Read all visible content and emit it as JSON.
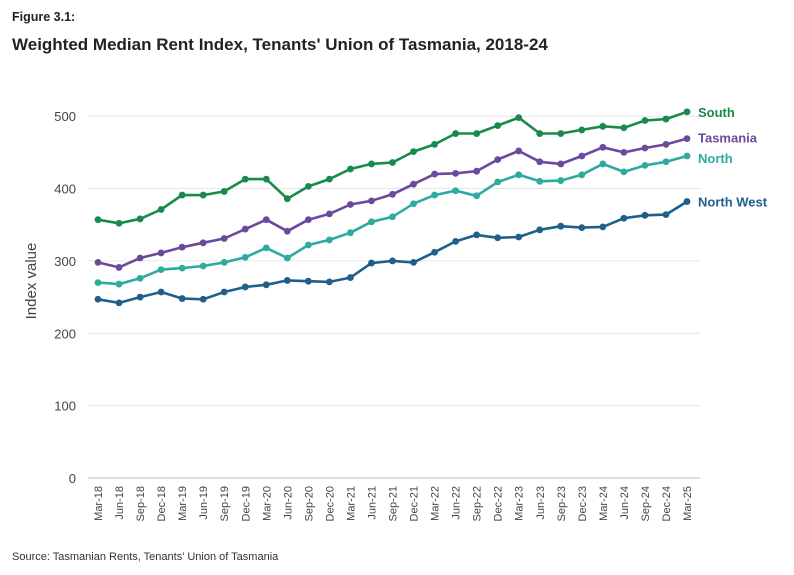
{
  "figure_label": "Figure 3.1:",
  "source": "Source: Tasmanian Rents, Tenants' Union of Tasmania",
  "chart_data": {
    "type": "line",
    "title": "Weighted Median Rent Index, Tenants' Union of Tasmania, 2018-24",
    "xlabel": "",
    "ylabel": "Index value",
    "ylim": [
      0,
      550
    ],
    "yticks": [
      0,
      100,
      200,
      300,
      400,
      500
    ],
    "grid": true,
    "legend": "direct labels at line ends (right)",
    "categories": [
      "Mar-18",
      "Jun-18",
      "Sep-18",
      "Dec-18",
      "Mar-19",
      "Jun-19",
      "Sep-19",
      "Dec-19",
      "Mar-20",
      "Jun-20",
      "Sep-20",
      "Dec-20",
      "Mar-21",
      "Jun-21",
      "Sep-21",
      "Dec-21",
      "Mar-22",
      "Jun-22",
      "Sep-22",
      "Dec-22",
      "Mar-23",
      "Jun-23",
      "Sep-23",
      "Dec-23",
      "Mar-24",
      "Jun-24",
      "Sep-24",
      "Dec-24",
      "Mar-25"
    ],
    "series": [
      {
        "name": "South",
        "color": "#1a8a4a",
        "values": [
          357,
          352,
          358,
          371,
          391,
          391,
          396,
          413,
          413,
          386,
          403,
          413,
          427,
          434,
          436,
          451,
          461,
          476,
          476,
          487,
          498,
          476,
          476,
          481,
          486,
          484,
          494,
          496,
          506
        ]
      },
      {
        "name": "Tasmania",
        "color": "#6a4a9c",
        "values": [
          298,
          291,
          304,
          311,
          319,
          325,
          331,
          344,
          357,
          341,
          357,
          365,
          378,
          383,
          392,
          406,
          420,
          421,
          424,
          440,
          452,
          437,
          434,
          445,
          457,
          450,
          456,
          461,
          469
        ]
      },
      {
        "name": "North",
        "color": "#2eaaa0",
        "values": [
          270,
          268,
          276,
          288,
          290,
          293,
          298,
          305,
          318,
          304,
          322,
          329,
          339,
          354,
          361,
          379,
          391,
          397,
          390,
          409,
          419,
          410,
          411,
          419,
          434,
          423,
          432,
          437,
          445
        ]
      },
      {
        "name": "North West",
        "color": "#1f5f8b",
        "values": [
          247,
          242,
          250,
          257,
          248,
          247,
          257,
          264,
          267,
          273,
          272,
          271,
          277,
          297,
          300,
          298,
          312,
          327,
          336,
          332,
          333,
          343,
          348,
          346,
          347,
          359,
          363,
          364,
          382
        ]
      }
    ]
  }
}
